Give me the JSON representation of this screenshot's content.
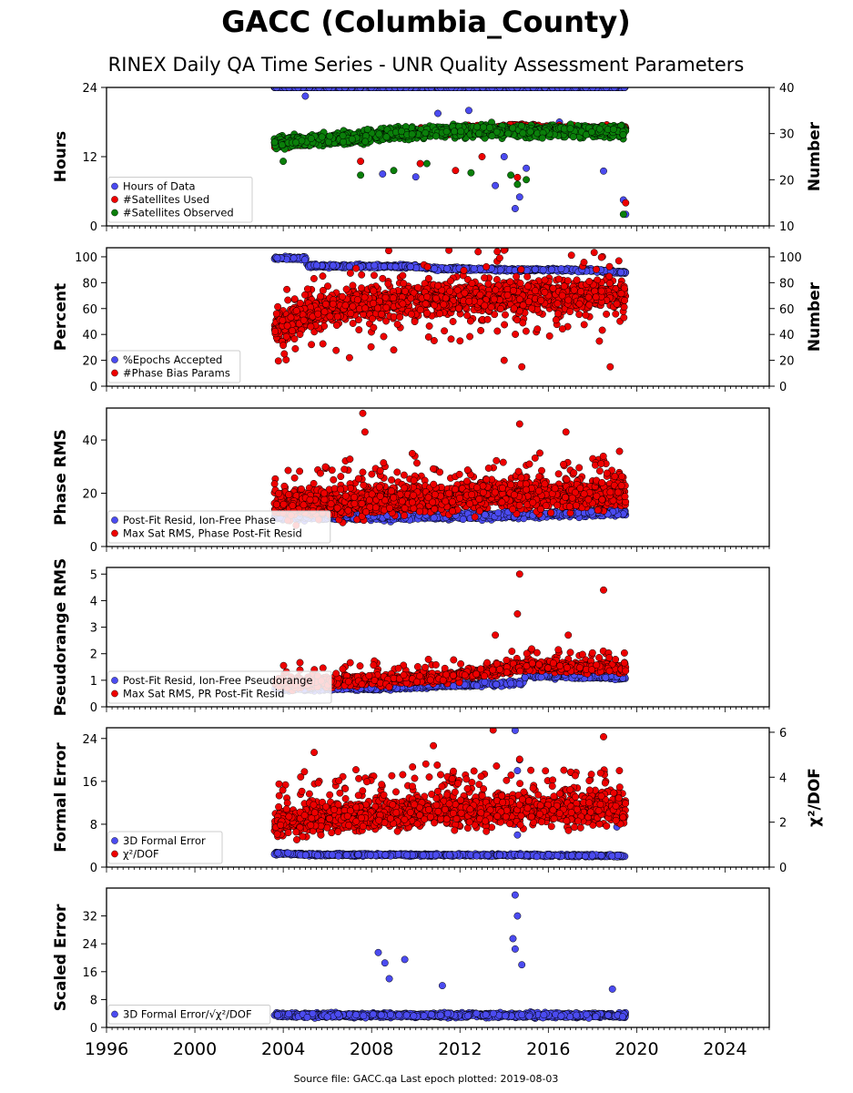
{
  "figure": {
    "title": "GACC (Columbia_County)",
    "subtitle": "RINEX Daily QA Time Series - UNR Quality Assessment Parameters",
    "footer": "Source file: GACC.qa Last epoch plotted: 2019-08-03",
    "x_range": [
      1996,
      2026
    ],
    "x_ticks": [
      1996,
      2000,
      2004,
      2008,
      2012,
      2016,
      2020,
      2024
    ],
    "data_span": [
      2003.6,
      2019.59
    ],
    "colors": {
      "blue": "#4b4bf0",
      "red": "#ee0000",
      "green": "#0a7f0a",
      "edge": "#000000"
    }
  },
  "chart_data": [
    {
      "type": "scatter",
      "ylabel": "Hours",
      "ylim": [
        0,
        24
      ],
      "yticks": [
        0,
        12,
        24
      ],
      "y2label": "Number",
      "y2lim": [
        10,
        40
      ],
      "y2ticks": [
        10,
        20,
        30,
        40
      ],
      "legend": "lower-left",
      "series": [
        {
          "name": "Hours of Data",
          "color": "#4b4bf0",
          "axis": "left",
          "base": 24,
          "n": 900,
          "x": [
            2003.6,
            2004.5,
            2006.0,
            2008.0,
            2010.0,
            2012.5,
            2014.0,
            2014.6,
            2015.5,
            2017.0,
            2018.5,
            2019.5
          ],
          "y": [
            24,
            24,
            24,
            24,
            24,
            24,
            24,
            24,
            24,
            24,
            24,
            24
          ],
          "outliers": [
            [
              2005.0,
              22.5
            ],
            [
              2007.5,
              15.0
            ],
            [
              2008.5,
              9.0
            ],
            [
              2010.0,
              8.5
            ],
            [
              2011.0,
              19.5
            ],
            [
              2012.4,
              20.0
            ],
            [
              2013.0,
              17.5
            ],
            [
              2013.6,
              7.0
            ],
            [
              2014.0,
              12.0
            ],
            [
              2014.5,
              3.0
            ],
            [
              2014.7,
              5.0
            ],
            [
              2015.0,
              10.0
            ],
            [
              2016.5,
              18.0
            ],
            [
              2018.5,
              9.5
            ],
            [
              2019.4,
              4.5
            ],
            [
              2019.5,
              2.0
            ]
          ]
        },
        {
          "name": "#Satellites Used",
          "color": "#ee0000",
          "axis": "right",
          "n": 900,
          "x": [
            2003.6,
            2005.0,
            2007.0,
            2009.0,
            2011.0,
            2013.0,
            2014.5,
            2016.0,
            2018.0,
            2019.5
          ],
          "y": [
            27.5,
            28.0,
            29.0,
            30.0,
            30.5,
            31.0,
            31.5,
            31.0,
            31.0,
            31.0
          ],
          "outliers": [
            [
              2007.5,
              24.0
            ],
            [
              2010.2,
              23.5
            ],
            [
              2011.8,
              22.0
            ],
            [
              2013.0,
              25.0
            ],
            [
              2014.6,
              20.5
            ],
            [
              2019.5,
              15.0
            ]
          ]
        },
        {
          "name": "#Satellites Observed",
          "color": "#0a7f0a",
          "axis": "right",
          "n": 1400,
          "x": [
            2003.6,
            2005.0,
            2007.0,
            2009.0,
            2011.0,
            2013.0,
            2014.5,
            2016.0,
            2018.0,
            2019.5
          ],
          "y": [
            28.0,
            28.5,
            29.0,
            30.0,
            30.5,
            30.8,
            30.5,
            30.5,
            30.5,
            30.5
          ],
          "outliers": [
            [
              2004.0,
              24.0
            ],
            [
              2007.5,
              21.0
            ],
            [
              2009.0,
              22.0
            ],
            [
              2010.5,
              23.5
            ],
            [
              2012.5,
              21.5
            ],
            [
              2014.3,
              21.0
            ],
            [
              2014.6,
              19.0
            ],
            [
              2015.0,
              20.0
            ],
            [
              2019.4,
              12.5
            ]
          ]
        }
      ]
    },
    {
      "type": "scatter",
      "ylabel": "Percent",
      "ylim": [
        0,
        107
      ],
      "yticks": [
        0,
        20,
        40,
        60,
        80,
        100
      ],
      "y2label": "Number",
      "y2lim": [
        0,
        107
      ],
      "y2ticks": [
        0,
        20,
        40,
        60,
        80,
        100
      ],
      "legend": "lower-left",
      "series": [
        {
          "name": "%Epochs Accepted",
          "color": "#4b4bf0",
          "axis": "left",
          "n": 900,
          "x": [
            2003.6,
            2005.0,
            2005.1,
            2010.0,
            2011.0,
            2014.0,
            2016.0,
            2018.0,
            2019.5
          ],
          "y": [
            99.0,
            99.0,
            93.0,
            92.5,
            91.0,
            90.0,
            90.0,
            89.5,
            88.0
          ],
          "outliers": []
        },
        {
          "name": "#Phase Bias Params",
          "color": "#ee0000",
          "axis": "right",
          "n": 1400,
          "x": [
            2003.6,
            2005.0,
            2007.0,
            2009.0,
            2011.0,
            2013.0,
            2014.5,
            2016.0,
            2018.0,
            2019.5
          ],
          "y": [
            46.0,
            55.0,
            62.0,
            66.0,
            68.0,
            70.0,
            68.0,
            70.0,
            70.0,
            72.0
          ],
          "outliers": [
            [
              2007.0,
              22.0
            ],
            [
              2009.0,
              28.0
            ],
            [
              2012.0,
              35.0
            ],
            [
              2014.0,
              20.0
            ],
            [
              2014.8,
              15.0
            ],
            [
              2018.8,
              15.0
            ],
            [
              2011.5,
              105.0
            ],
            [
              2014.0,
              105.0
            ]
          ]
        }
      ]
    },
    {
      "type": "scatter",
      "ylabel": "Phase RMS",
      "ylim": [
        0,
        52
      ],
      "yticks": [
        0,
        20,
        40
      ],
      "legend": "lower-left",
      "series": [
        {
          "name": "Post-Fit Resid, Ion-Free Phase",
          "color": "#4b4bf0",
          "axis": "left",
          "n": 900,
          "x": [
            2003.6,
            2008.0,
            2012.0,
            2016.0,
            2019.5
          ],
          "y": [
            11.5,
            11.0,
            11.5,
            12.0,
            13.0
          ],
          "outliers": []
        },
        {
          "name": "Max Sat RMS, Phase Post-Fit Resid",
          "color": "#ee0000",
          "axis": "left",
          "n": 1500,
          "x": [
            2003.6,
            2007.0,
            2011.0,
            2014.0,
            2016.0,
            2019.5
          ],
          "y": [
            15.5,
            17.0,
            18.0,
            20.0,
            19.0,
            19.5
          ],
          "outliers": [
            [
              2007.6,
              50.0
            ],
            [
              2007.7,
              43.0
            ],
            [
              2014.7,
              46.0
            ],
            [
              2016.8,
              43.0
            ]
          ]
        }
      ]
    },
    {
      "type": "scatter",
      "ylabel": "Pseudorange RMS",
      "ylim": [
        0,
        5.25
      ],
      "yticks": [
        0,
        1,
        2,
        3,
        4,
        5
      ],
      "legend": "lower-left",
      "series": [
        {
          "name": "Post-Fit Resid, Ion-Free Pseudorange",
          "color": "#4b4bf0",
          "axis": "left",
          "n": 900,
          "x": [
            2003.6,
            2008.0,
            2011.0,
            2014.8,
            2015.0,
            2019.5
          ],
          "y": [
            0.7,
            0.7,
            0.8,
            0.9,
            1.2,
            1.1
          ],
          "outliers": []
        },
        {
          "name": "Max Sat RMS, PR Post-Fit Resid",
          "color": "#ee0000",
          "axis": "left",
          "n": 1500,
          "x": [
            2003.6,
            2006.0,
            2008.0,
            2011.0,
            2013.5,
            2014.5,
            2015.0,
            2017.0,
            2019.5
          ],
          "y": [
            0.85,
            0.95,
            1.0,
            1.1,
            1.35,
            1.5,
            1.55,
            1.5,
            1.45
          ],
          "outliers": [
            [
              2014.7,
              5.0
            ],
            [
              2018.5,
              4.4
            ],
            [
              2014.6,
              3.5
            ],
            [
              2013.6,
              2.7
            ],
            [
              2016.9,
              2.7
            ]
          ]
        }
      ]
    },
    {
      "type": "scatter",
      "ylabel": "Formal Error",
      "ylim": [
        0,
        26
      ],
      "yticks": [
        0,
        8,
        16,
        24
      ],
      "y2label": "χ²/DOF",
      "y2lim": [
        0,
        6.2
      ],
      "y2ticks": [
        0,
        2,
        4,
        6
      ],
      "legend": "lower-left",
      "series": [
        {
          "name": "3D Formal Error",
          "color": "#4b4bf0",
          "axis": "left",
          "n": 900,
          "x": [
            2003.6,
            2005.5,
            2010.0,
            2016.0,
            2019.5
          ],
          "y": [
            2.6,
            2.3,
            2.3,
            2.2,
            2.1
          ],
          "outliers": [
            [
              2014.5,
              25.5
            ],
            [
              2014.6,
              18.0
            ],
            [
              2014.7,
              20.0
            ],
            [
              2014.5,
              8.0
            ],
            [
              2014.6,
              6.0
            ],
            [
              2019.1,
              7.5
            ]
          ]
        },
        {
          "name": "χ²/DOF",
          "color": "#ee0000",
          "axis": "right",
          "n": 1500,
          "x": [
            2003.6,
            2007.0,
            2011.0,
            2014.0,
            2016.0,
            2019.5
          ],
          "y": [
            1.9,
            2.3,
            2.5,
            2.5,
            2.5,
            2.6
          ],
          "outliers": [
            [
              2005.4,
              5.1
            ],
            [
              2010.8,
              5.4
            ],
            [
              2013.5,
              6.1
            ],
            [
              2018.5,
              5.8
            ],
            [
              2014.7,
              4.8
            ]
          ]
        }
      ]
    },
    {
      "type": "scatter",
      "ylabel": "Scaled Error",
      "ylim": [
        0,
        40
      ],
      "yticks": [
        0,
        8,
        16,
        24,
        32
      ],
      "legend": "lower-left",
      "series": [
        {
          "name": "3D Formal Error/√χ²/DOF",
          "color": "#4b4bf0",
          "axis": "left",
          "n": 1200,
          "x": [
            2003.6,
            2008.0,
            2012.0,
            2016.0,
            2019.5
          ],
          "y": [
            3.5,
            3.5,
            3.5,
            3.5,
            3.5
          ],
          "outliers": [
            [
              2008.3,
              21.5
            ],
            [
              2008.6,
              18.5
            ],
            [
              2009.5,
              19.5
            ],
            [
              2008.8,
              14.0
            ],
            [
              2011.2,
              12.0
            ],
            [
              2014.5,
              38.0
            ],
            [
              2014.6,
              32.0
            ],
            [
              2014.4,
              25.5
            ],
            [
              2014.8,
              18.0
            ],
            [
              2014.5,
              22.5
            ],
            [
              2018.9,
              11.0
            ]
          ]
        }
      ]
    }
  ]
}
